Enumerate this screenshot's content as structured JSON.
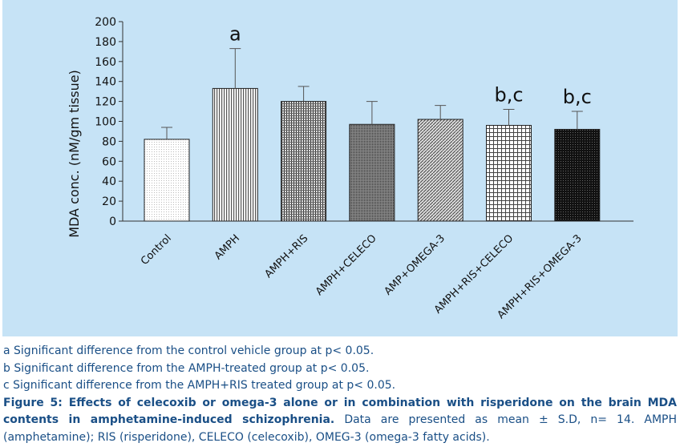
{
  "chart_data": {
    "type": "bar",
    "y_label": "MDA conc. (nM/gm tissue)",
    "categories": [
      "Control",
      "AMPH",
      "AMPH+RIS",
      "AMPH+CELECO",
      "AMP+OMEGA-3",
      "AMPH+RIS+CELECO",
      "AMPH+RIS+OMEGA-3"
    ],
    "values": [
      82,
      133,
      120,
      97,
      102,
      96,
      92
    ],
    "errors": [
      12,
      40,
      15,
      23,
      14,
      16,
      18
    ],
    "ylim": [
      0,
      200
    ],
    "yticks": [
      0,
      20,
      40,
      60,
      80,
      100,
      120,
      140,
      160,
      180,
      200
    ],
    "grid": false,
    "annotations": [
      {
        "text": "a",
        "x": "AMPH"
      },
      {
        "text": "b,c",
        "x": "AMPH+RIS+CELECO"
      },
      {
        "text": "b,c",
        "x": "AMPH+RIS+OMEGA-3"
      }
    ]
  },
  "footnotes": [
    "a Significant difference from the control vehicle group at p< 0.05.",
    "b Significant difference from the AMPH-treated group at p< 0.05.",
    "c Significant difference from the AMPH+RIS treated group at p< 0.05."
  ],
  "caption": {
    "label": "Figure 5: Effects of celecoxib or omega-3 alone or in combination with risperidone on the brain MDA contents in amphetamine-induced schizophrenia.",
    "text": "Data are presented as mean ± S.D, n= 14. AMPH (amphetamine); RIS (risperidone), CELECO (celecoxib), OMEG-3 (omega-3 fatty acids)."
  }
}
